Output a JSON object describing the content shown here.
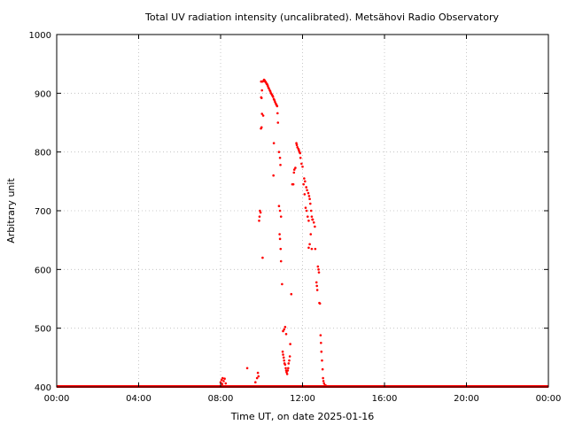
{
  "chart_data": {
    "type": "scatter",
    "title": "Total UV radiation intensity (uncalibrated). Metsähovi Radio Observatory",
    "xlabel": "Time UT, on date 2025-01-16",
    "ylabel": "Arbitrary unit",
    "x_unit": "hours UT",
    "xlim": [
      0,
      24
    ],
    "ylim": [
      400,
      1000
    ],
    "x_ticks": [
      0,
      4,
      8,
      12,
      16,
      20,
      24
    ],
    "x_tick_labels": [
      "00:00",
      "04:00",
      "08:00",
      "12:00",
      "16:00",
      "20:00",
      "00:00"
    ],
    "y_ticks": [
      400,
      500,
      600,
      700,
      800,
      900,
      1000
    ],
    "y_tick_labels": [
      "400",
      "500",
      "600",
      "700",
      "800",
      "900",
      "1000"
    ],
    "grid": true,
    "marker_color": "#ff0000",
    "baseline": {
      "value": 400,
      "x_from": 0,
      "x_to": 24
    },
    "series": [
      {
        "points": [
          [
            8.0,
            408
          ],
          [
            8.05,
            412
          ],
          [
            8.08,
            405
          ],
          [
            8.1,
            415
          ],
          [
            8.15,
            410
          ],
          [
            8.2,
            414
          ],
          [
            8.25,
            406
          ],
          [
            9.3,
            432
          ],
          [
            9.7,
            408
          ],
          [
            9.78,
            415
          ],
          [
            9.82,
            424
          ],
          [
            9.85,
            418
          ],
          [
            9.88,
            683
          ],
          [
            9.9,
            690
          ],
          [
            9.92,
            700
          ],
          [
            9.95,
            697
          ],
          [
            9.97,
            840
          ],
          [
            10.0,
            842
          ],
          [
            10.02,
            865
          ],
          [
            10.05,
            620
          ],
          [
            10.08,
            862
          ],
          [
            9.98,
            893
          ],
          [
            10.0,
            892
          ],
          [
            10.02,
            905
          ],
          [
            10.04,
            920
          ],
          [
            9.98,
            920
          ],
          [
            10.1,
            921
          ],
          [
            10.12,
            923
          ],
          [
            10.15,
            922
          ],
          [
            10.18,
            920
          ],
          [
            10.2,
            919
          ],
          [
            10.22,
            918
          ],
          [
            10.25,
            916
          ],
          [
            10.28,
            915
          ],
          [
            10.3,
            913
          ],
          [
            10.33,
            910
          ],
          [
            10.36,
            908
          ],
          [
            10.4,
            905
          ],
          [
            10.43,
            903
          ],
          [
            10.46,
            900
          ],
          [
            10.5,
            898
          ],
          [
            10.53,
            896
          ],
          [
            10.56,
            894
          ],
          [
            10.6,
            890
          ],
          [
            10.63,
            888
          ],
          [
            10.66,
            885
          ],
          [
            10.7,
            882
          ],
          [
            10.73,
            880
          ],
          [
            10.76,
            878
          ],
          [
            10.6,
            815
          ],
          [
            10.58,
            760
          ],
          [
            10.78,
            866
          ],
          [
            10.8,
            850
          ],
          [
            10.85,
            800
          ],
          [
            10.9,
            790
          ],
          [
            10.92,
            778
          ],
          [
            10.85,
            708
          ],
          [
            10.9,
            700
          ],
          [
            10.95,
            690
          ],
          [
            10.88,
            660
          ],
          [
            10.9,
            652
          ],
          [
            10.93,
            635
          ],
          [
            10.95,
            614
          ],
          [
            11.0,
            575
          ],
          [
            11.05,
            495
          ],
          [
            11.1,
            498
          ],
          [
            11.15,
            502
          ],
          [
            11.2,
            490
          ],
          [
            11.03,
            460
          ],
          [
            11.05,
            455
          ],
          [
            11.08,
            450
          ],
          [
            11.1,
            445
          ],
          [
            11.12,
            440
          ],
          [
            11.15,
            438
          ],
          [
            11.18,
            432
          ],
          [
            11.2,
            428
          ],
          [
            11.22,
            425
          ],
          [
            11.25,
            422
          ],
          [
            11.28,
            428
          ],
          [
            11.3,
            432
          ],
          [
            11.32,
            440
          ],
          [
            11.35,
            445
          ],
          [
            11.38,
            452
          ],
          [
            11.4,
            473
          ],
          [
            11.45,
            558
          ],
          [
            11.5,
            745
          ],
          [
            11.55,
            745
          ],
          [
            11.58,
            765
          ],
          [
            11.6,
            770
          ],
          [
            11.65,
            773
          ],
          [
            11.7,
            815
          ],
          [
            11.72,
            812
          ],
          [
            11.75,
            808
          ],
          [
            11.8,
            805
          ],
          [
            11.82,
            803
          ],
          [
            11.85,
            800
          ],
          [
            11.88,
            798
          ],
          [
            11.9,
            790
          ],
          [
            11.95,
            780
          ],
          [
            12.0,
            775
          ],
          [
            12.05,
            745
          ],
          [
            12.1,
            728
          ],
          [
            12.15,
            705
          ],
          [
            12.2,
            700
          ],
          [
            12.25,
            690
          ],
          [
            12.3,
            683
          ],
          [
            12.08,
            755
          ],
          [
            12.12,
            750
          ],
          [
            12.18,
            740
          ],
          [
            12.22,
            735
          ],
          [
            12.28,
            730
          ],
          [
            12.32,
            725
          ],
          [
            12.35,
            720
          ],
          [
            12.38,
            712
          ],
          [
            12.42,
            700
          ],
          [
            12.45,
            690
          ],
          [
            12.48,
            685
          ],
          [
            12.4,
            660
          ],
          [
            12.35,
            643
          ],
          [
            12.3,
            637
          ],
          [
            12.45,
            635
          ],
          [
            12.5,
            685
          ],
          [
            12.55,
            680
          ],
          [
            12.6,
            673
          ],
          [
            12.62,
            635
          ],
          [
            12.68,
            578
          ],
          [
            12.7,
            572
          ],
          [
            12.72,
            565
          ],
          [
            12.75,
            605
          ],
          [
            12.78,
            600
          ],
          [
            12.8,
            595
          ],
          [
            12.82,
            543
          ],
          [
            12.85,
            542
          ],
          [
            12.88,
            488
          ],
          [
            12.9,
            475
          ],
          [
            12.92,
            460
          ],
          [
            12.95,
            445
          ],
          [
            12.98,
            430
          ],
          [
            13.0,
            415
          ],
          [
            13.02,
            410
          ],
          [
            13.05,
            406
          ],
          [
            13.1,
            403
          ],
          [
            13.15,
            402
          ],
          [
            13.2,
            401
          ]
        ]
      }
    ]
  }
}
